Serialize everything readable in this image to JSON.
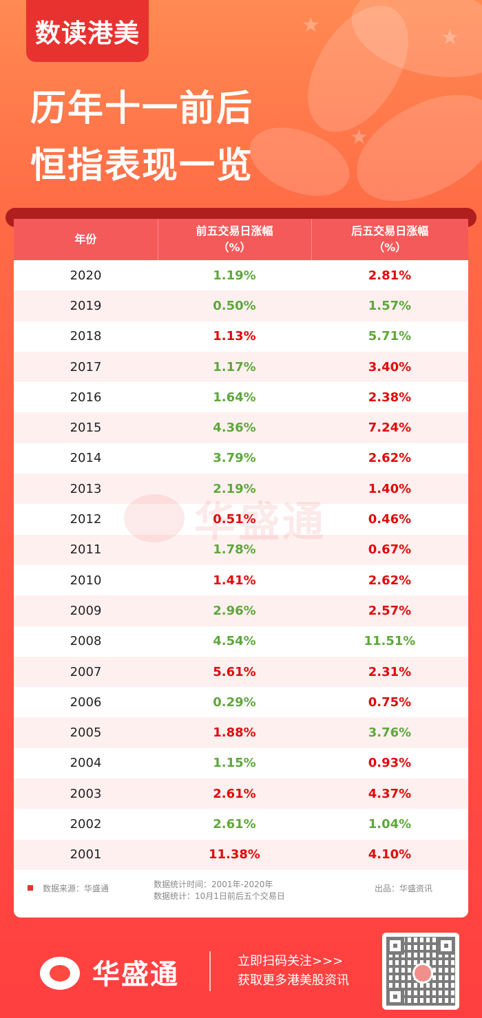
{
  "brand_tab": "数读港美",
  "headline": [
    "历年十一前后",
    "恒指表现一览"
  ],
  "colors": {
    "up": "#e00a0a",
    "down": "#5ea73b",
    "header_bg": "#f45a5a",
    "brand_red": "#e8322f"
  },
  "table": {
    "headers": [
      {
        "line1": "年份",
        "line2": ""
      },
      {
        "line1": "前五交易日涨幅",
        "line2": "（%）"
      },
      {
        "line1": "后五交易日涨幅",
        "line2": "（%）"
      }
    ],
    "rows": [
      {
        "year": "2020",
        "before": "1.19%",
        "before_dir": "down",
        "after": "2.81%",
        "after_dir": "up"
      },
      {
        "year": "2019",
        "before": "0.50%",
        "before_dir": "down",
        "after": "1.57%",
        "after_dir": "down"
      },
      {
        "year": "2018",
        "before": "1.13%",
        "before_dir": "up",
        "after": "5.71%",
        "after_dir": "down"
      },
      {
        "year": "2017",
        "before": "1.17%",
        "before_dir": "down",
        "after": "3.40%",
        "after_dir": "up"
      },
      {
        "year": "2016",
        "before": "1.64%",
        "before_dir": "down",
        "after": "2.38%",
        "after_dir": "up"
      },
      {
        "year": "2015",
        "before": "4.36%",
        "before_dir": "down",
        "after": "7.24%",
        "after_dir": "up"
      },
      {
        "year": "2014",
        "before": "3.79%",
        "before_dir": "down",
        "after": "2.62%",
        "after_dir": "up"
      },
      {
        "year": "2013",
        "before": "2.19%",
        "before_dir": "down",
        "after": "1.40%",
        "after_dir": "up"
      },
      {
        "year": "2012",
        "before": "0.51%",
        "before_dir": "up",
        "after": "0.46%",
        "after_dir": "up"
      },
      {
        "year": "2011",
        "before": "1.78%",
        "before_dir": "down",
        "after": "0.67%",
        "after_dir": "up"
      },
      {
        "year": "2010",
        "before": "1.41%",
        "before_dir": "up",
        "after": "2.62%",
        "after_dir": "up"
      },
      {
        "year": "2009",
        "before": "2.96%",
        "before_dir": "down",
        "after": "2.57%",
        "after_dir": "up"
      },
      {
        "year": "2008",
        "before": "4.54%",
        "before_dir": "down",
        "after": "11.51%",
        "after_dir": "down"
      },
      {
        "year": "2007",
        "before": "5.61%",
        "before_dir": "up",
        "after": "2.31%",
        "after_dir": "up"
      },
      {
        "year": "2006",
        "before": "0.29%",
        "before_dir": "down",
        "after": "0.75%",
        "after_dir": "up"
      },
      {
        "year": "2005",
        "before": "1.88%",
        "before_dir": "up",
        "after": "3.76%",
        "after_dir": "down"
      },
      {
        "year": "2004",
        "before": "1.15%",
        "before_dir": "down",
        "after": "0.93%",
        "after_dir": "up"
      },
      {
        "year": "2003",
        "before": "2.61%",
        "before_dir": "up",
        "after": "4.37%",
        "after_dir": "up"
      },
      {
        "year": "2002",
        "before": "2.61%",
        "before_dir": "down",
        "after": "1.04%",
        "after_dir": "down"
      },
      {
        "year": "2001",
        "before": "11.38%",
        "before_dir": "up",
        "after": "4.10%",
        "after_dir": "up"
      }
    ]
  },
  "watermark": "华盛通",
  "footnotes": {
    "source": "数据来源：华盛通",
    "period": "数据统计时间：2001年-2020年",
    "method": "数据统计：10月1日前后五个交易日",
    "publisher": "出品：华盛资讯"
  },
  "footer": {
    "logo_text": "华盛通",
    "cta_line1": "立即扫码关注>>>",
    "cta_line2": "获取更多港美股资讯"
  }
}
